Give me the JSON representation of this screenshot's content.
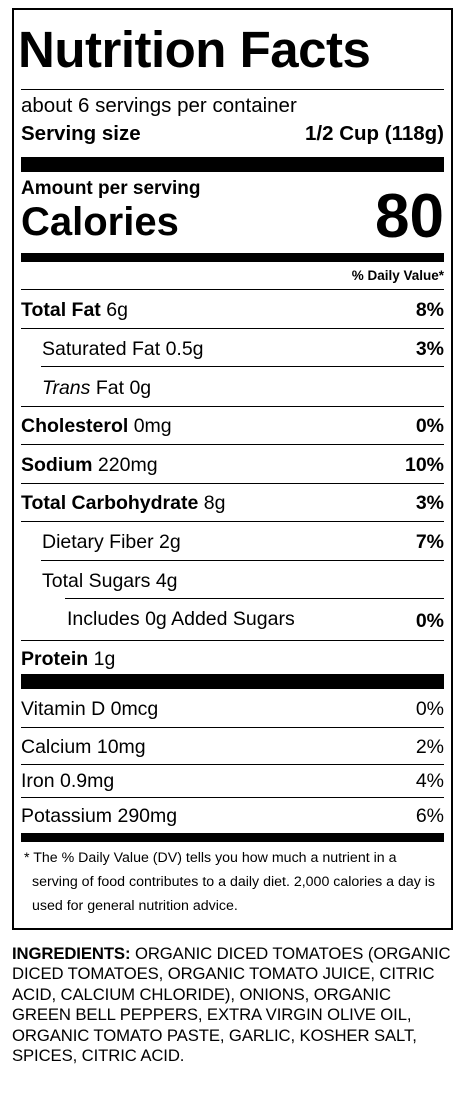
{
  "label": {
    "title": "Nutrition Facts",
    "servings_per_container": "about 6 servings per container",
    "serving_size_label": "Serving size",
    "serving_size_value": "1/2 Cup (118g)",
    "amount_per_serving": "Amount per serving",
    "calories_label": "Calories",
    "calories_value": "80",
    "daily_value_header": "% Daily Value*",
    "nutrients": [
      {
        "name": "Total Fat",
        "amount": "6g",
        "dv": "8%"
      },
      {
        "name": "Saturated Fat",
        "amount": "0.5g",
        "dv": "3%"
      },
      {
        "name": "Trans",
        "suffix": "Fat",
        "amount": "0g",
        "dv": ""
      },
      {
        "name": "Cholesterol",
        "amount": "0mg",
        "dv": "0%"
      },
      {
        "name": "Sodium",
        "amount": "220mg",
        "dv": "10%"
      },
      {
        "name": "Total Carbohydrate",
        "amount": "8g",
        "dv": "3%"
      },
      {
        "name": "Dietary Fiber",
        "amount": "2g",
        "dv": "7%"
      },
      {
        "name": "Total Sugars",
        "amount": "4g",
        "dv": ""
      },
      {
        "prefix": "Includes",
        "amount": "0g",
        "name": "Added Sugars",
        "dv": "0%"
      },
      {
        "name": "Protein",
        "amount": "1g",
        "dv": ""
      }
    ],
    "vitamins": [
      {
        "name": "Vitamin D",
        "amount": "0mcg",
        "dv": "0%"
      },
      {
        "name": "Calcium",
        "amount": "10mg",
        "dv": "2%"
      },
      {
        "name": "Iron",
        "amount": "0.9mg",
        "dv": "4%"
      },
      {
        "name": "Potassium",
        "amount": "290mg",
        "dv": "6%"
      }
    ],
    "footnote": "* The % Daily Value (DV) tells you how much a nutrient in a serving of food contributes to a daily diet. 2,000 calories a day is used for general nutrition advice."
  },
  "ingredients": {
    "label": "INGREDIENTS:",
    "text": "ORGANIC DICED TOMATOES (ORGANIC DICED TOMATOES, ORGANIC TOMATO JUICE, CITRIC ACID, CALCIUM CHLORIDE), ONIONS, ORGANIC GREEN BELL PEPPERS, EXTRA VIRGIN OLIVE OIL, ORGANIC TOMATO PASTE, GARLIC, KOSHER SALT, SPICES, CITRIC ACID."
  }
}
